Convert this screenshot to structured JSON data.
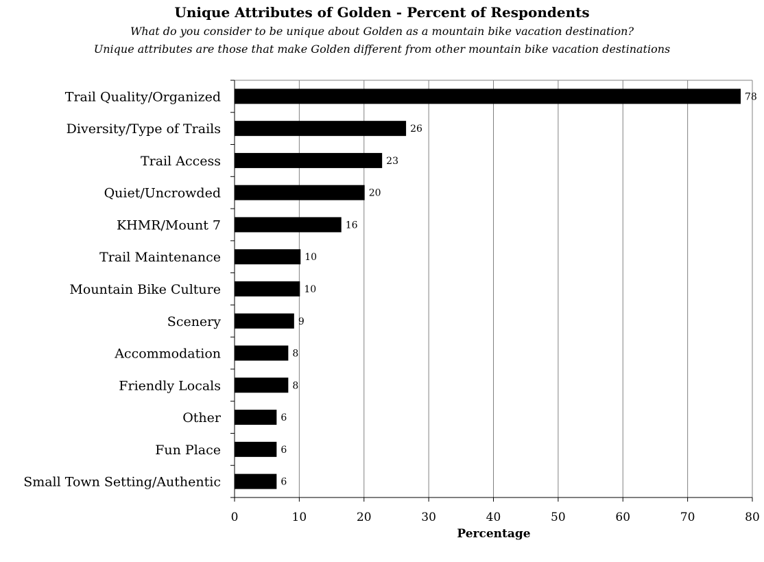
{
  "chart_data": {
    "type": "bar",
    "orientation": "horizontal",
    "title": "Unique Attributes of Golden - Percent of Respondents",
    "subtitle_lines": [
      "What do you consider to be unique about Golden as a mountain bike vacation destination?",
      "Unique attributes are those that make Golden different from other mountain bike vacation destinations"
    ],
    "xlabel": "Percentage",
    "ylabel": "",
    "xlim": [
      0,
      80
    ],
    "xticks": [
      0,
      10,
      20,
      30,
      40,
      50,
      60,
      70,
      80
    ],
    "grid": "vertical",
    "legend": "none",
    "bar_color": "#000000",
    "categories": [
      "Trail Quality/Organized",
      "Diversity/Type of Trails",
      "Trail Access",
      "Quiet/Uncrowded",
      "KHMR/Mount 7",
      "Trail Maintenance",
      "Mountain Bike Culture",
      "Scenery",
      "Accommodation",
      "Friendly Locals",
      "Other",
      "Fun Place",
      "Small Town Setting/Authentic"
    ],
    "values": [
      78.2,
      26.5,
      22.8,
      20.1,
      16.5,
      10.2,
      10.1,
      9.2,
      8.3,
      8.3,
      6.5,
      6.5,
      6.5
    ],
    "data_labels": [
      "78",
      "26",
      "23",
      "20",
      "16",
      "10",
      "10",
      "9",
      "8",
      "8",
      "6",
      "6",
      "6"
    ]
  }
}
